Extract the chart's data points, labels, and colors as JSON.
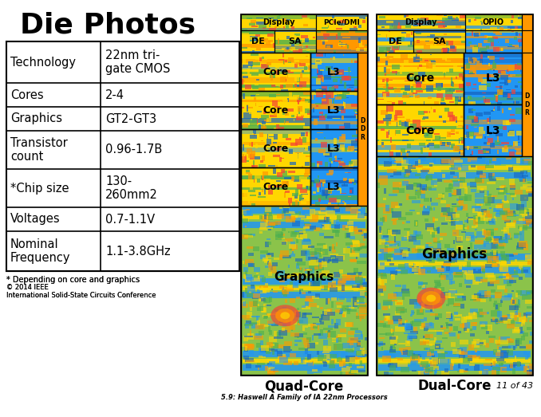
{
  "title": "Die Photos",
  "bg_color": "#ffffff",
  "table_rows": [
    [
      "Technology",
      "22nm tri-\ngate CMOS"
    ],
    [
      "Cores",
      "2-4"
    ],
    [
      "Graphics",
      "GT2-GT3"
    ],
    [
      "Transistor\ncount",
      "0.96-1.7B"
    ],
    [
      "*Chip size",
      "130-\n260mm2"
    ],
    [
      "Voltages",
      "0.7-1.1V"
    ],
    [
      "Nominal\nFrequency",
      "1.1-3.8GHz"
    ]
  ],
  "footnote": "* Depending on core and graphics",
  "copyright": "© 2014 IEEE\nInternational Solid-State Circuits Conference",
  "slide_ref": "5.9: Haswell A Family of IA 22nm Processors",
  "page": "11 of 43",
  "quad_label": "Quad-Core",
  "dual_label": "Dual-Core",
  "col_yellow": "#FFD700",
  "col_blue": "#1565C0",
  "col_blue2": "#2196F3",
  "col_green": "#8BC34A",
  "col_orange": "#FF9800",
  "col_red": "#F44336",
  "col_dark_orange": "#E65100",
  "col_cyan": "#00BCD4"
}
